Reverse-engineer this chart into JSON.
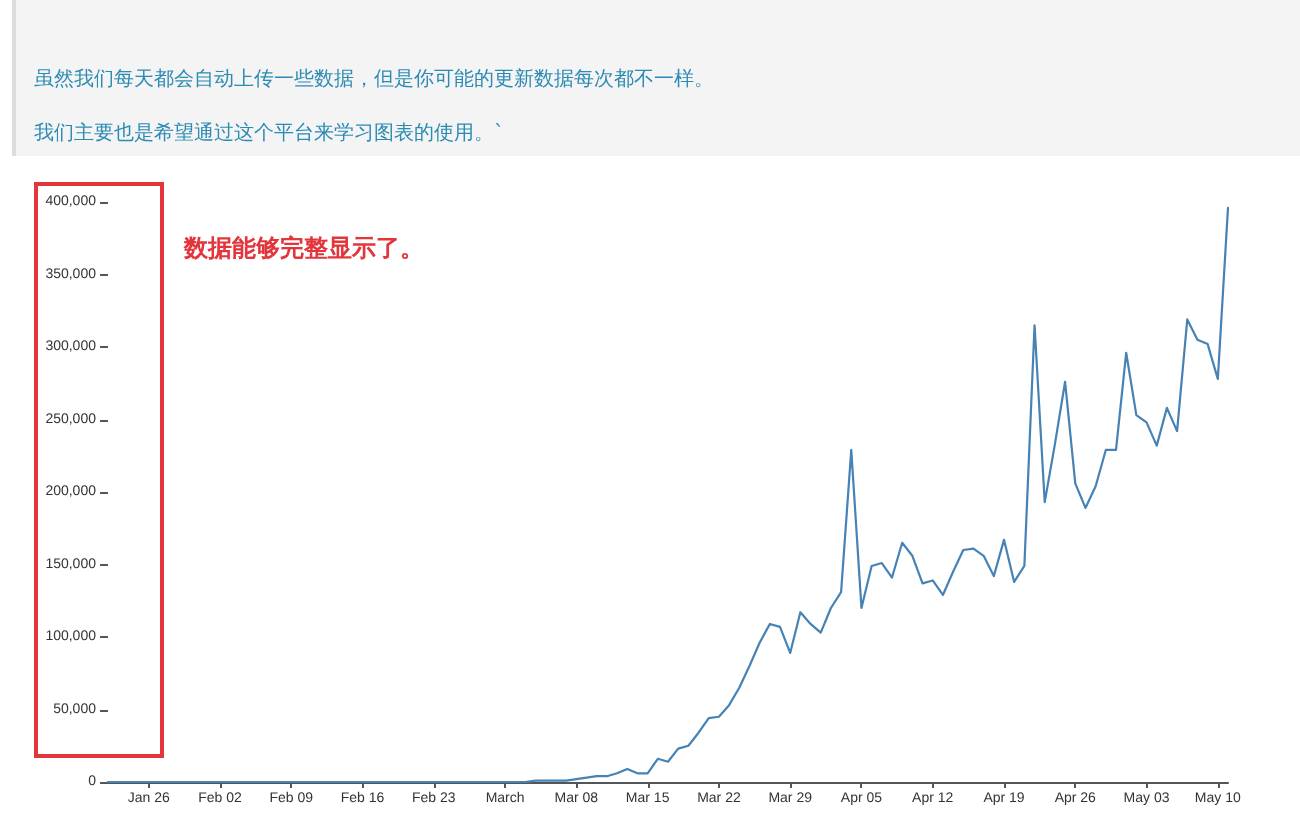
{
  "chart_data": {
    "type": "line",
    "annotations": [
      "虽然我们每天都会自动上传一些数据，但是你可能的更新数据每次都不一样。",
      "我们主要也是希望通过这个平台来学习图表的使用。`",
      "数据能够完整显示了。"
    ],
    "x": [
      "--01-22",
      "--01-23",
      "--01-24",
      "--01-25",
      "--01-26",
      "--01-27",
      "--01-28",
      "--01-29",
      "--01-30",
      "--01-31",
      "--02-01",
      "--02-02",
      "--02-03",
      "--02-04",
      "--02-05",
      "--02-06",
      "--02-07",
      "--02-08",
      "--02-09",
      "--02-10",
      "--02-11",
      "--02-12",
      "--02-13",
      "--02-14",
      "--02-15",
      "--02-16",
      "--02-17",
      "--02-18",
      "--02-19",
      "--02-20",
      "--02-21",
      "--02-22",
      "--02-23",
      "--02-24",
      "--02-25",
      "--02-26",
      "--02-27",
      "--02-28",
      "--02-29",
      "--03-01",
      "--03-02",
      "--03-03",
      "--03-04",
      "--03-05",
      "--03-06",
      "--03-07",
      "--03-08",
      "--03-09",
      "--03-10",
      "--03-11",
      "--03-12",
      "--03-13",
      "--03-14",
      "--03-15",
      "--03-16",
      "--03-17",
      "--03-18",
      "--03-19",
      "--03-20",
      "--03-21",
      "--03-22",
      "--03-23",
      "--03-24",
      "--03-25",
      "--03-26",
      "--03-27",
      "--03-28",
      "--03-29",
      "--03-30",
      "--03-31",
      "--04-01",
      "--04-02",
      "--04-03",
      "--04-04",
      "--04-05",
      "--04-06",
      "--04-07",
      "--04-08",
      "--04-09",
      "--04-10",
      "--04-11",
      "--04-12",
      "--04-13",
      "--04-14",
      "--04-15",
      "--04-16",
      "--04-17",
      "--04-18",
      "--04-19",
      "--04-20",
      "--04-21",
      "--04-22",
      "--04-23",
      "--04-24",
      "--04-25",
      "--04-26",
      "--04-27",
      "--04-28",
      "--04-29",
      "--04-30",
      "--05-01",
      "--05-02",
      "--05-03",
      "--05-04",
      "--05-05",
      "--05-06",
      "--05-07",
      "--05-08",
      "--05-09",
      "--05-10",
      "--05-11"
    ],
    "values": [
      0,
      0,
      0,
      0,
      0,
      0,
      0,
      0,
      0,
      0,
      0,
      0,
      0,
      0,
      0,
      0,
      0,
      0,
      0,
      0,
      0,
      0,
      0,
      0,
      0,
      0,
      0,
      0,
      0,
      0,
      0,
      0,
      0,
      0,
      0,
      0,
      0,
      0,
      0,
      0,
      0,
      0,
      1000,
      1000,
      1000,
      1000,
      2000,
      3000,
      4000,
      4000,
      6000,
      9000,
      6000,
      6000,
      16000,
      14000,
      23000,
      25000,
      34000,
      44000,
      45000,
      53000,
      65000,
      80000,
      96000,
      109000,
      107000,
      89000,
      117000,
      109000,
      103000,
      120000,
      131000,
      229000,
      120000,
      149000,
      151000,
      141000,
      165000,
      156000,
      137000,
      139000,
      129000,
      145000,
      160000,
      161000,
      156000,
      142000,
      167000,
      138000,
      149000,
      315000,
      193000,
      233000,
      276000,
      206000,
      189000,
      204000,
      229000,
      229000,
      296000,
      253000,
      248000,
      232000,
      258000,
      242000,
      319000,
      305000,
      302000,
      278000,
      396000
    ],
    "color": "#4682b4",
    "xlim": [
      "--01-22",
      "--05-11"
    ],
    "xticks": [
      {
        "value": "--01-26",
        "label": "Jan 26"
      },
      {
        "value": "--02-02",
        "label": "Feb 02"
      },
      {
        "value": "--02-09",
        "label": "Feb 09"
      },
      {
        "value": "--02-16",
        "label": "Feb 16"
      },
      {
        "value": "--02-23",
        "label": "Feb 23"
      },
      {
        "value": "--03-01",
        "label": "March"
      },
      {
        "value": "--03-08",
        "label": "Mar 08"
      },
      {
        "value": "--03-15",
        "label": "Mar 15"
      },
      {
        "value": "--03-22",
        "label": "Mar 22"
      },
      {
        "value": "--03-29",
        "label": "Mar 29"
      },
      {
        "value": "--04-05",
        "label": "Apr 05"
      },
      {
        "value": "--04-12",
        "label": "Apr 12"
      },
      {
        "value": "--04-19",
        "label": "Apr 19"
      },
      {
        "value": "--04-26",
        "label": "Apr 26"
      },
      {
        "value": "--05-03",
        "label": "May 03"
      },
      {
        "value": "--05-10",
        "label": "May 10"
      }
    ],
    "ylim": [
      0,
      400000
    ],
    "yticks": [
      0,
      {
        "value": 50000,
        "label": "50,000"
      },
      {
        "value": 100000,
        "label": "100,000"
      },
      {
        "value": 150000,
        "label": "150,000"
      },
      {
        "value": 200000,
        "label": "200,000"
      },
      {
        "value": 250000,
        "label": "250,000"
      },
      {
        "value": 300000,
        "label": "300,000"
      },
      {
        "value": 350000,
        "label": "350,000"
      },
      {
        "value": 400000,
        "label": "400,000"
      }
    ]
  }
}
